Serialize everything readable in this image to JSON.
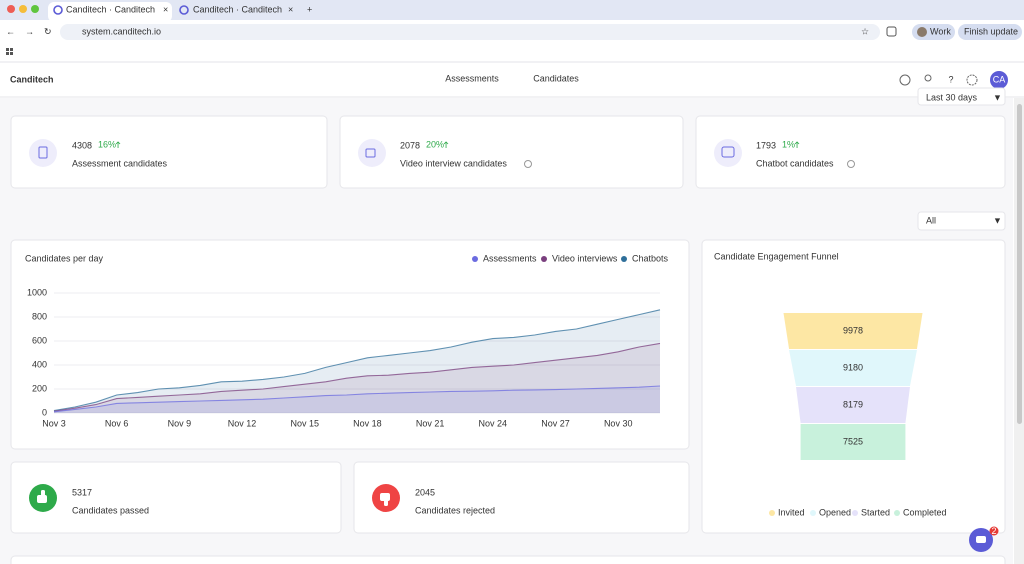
{
  "browser": {
    "tabs": [
      "Canditech · Canditech",
      "Canditech · Canditech"
    ],
    "url": "system.canditech.io",
    "profile": "Work",
    "update_button": "Finish update"
  },
  "header": {
    "logo": "Canditech",
    "nav": [
      "Assessments",
      "Candidates"
    ],
    "avatar": "CA"
  },
  "filters": {
    "period": "Last 30 days",
    "scope": "All"
  },
  "stats": [
    {
      "value": 4308,
      "change": "16%",
      "label": "Assessment candidates"
    },
    {
      "value": 2078,
      "change": "20%",
      "label": "Video interview candidates"
    },
    {
      "value": 1793,
      "change": "1%",
      "label": "Chatbot candidates"
    }
  ],
  "results": [
    {
      "value": 5317,
      "label": "Candidates passed"
    },
    {
      "value": 2045,
      "label": "Candidates rejected"
    }
  ],
  "chat_badge": 2,
  "chart_data": [
    {
      "type": "area",
      "title": "Candidates per day",
      "categories": [
        "Nov 3",
        null,
        null,
        "Nov 6",
        null,
        null,
        "Nov 9",
        null,
        null,
        "Nov 12",
        null,
        null,
        "Nov 15",
        null,
        null,
        "Nov 18",
        null,
        null,
        "Nov 21",
        null,
        null,
        "Nov 24",
        null,
        null,
        "Nov 27",
        null,
        null,
        "Nov 30",
        null,
        null
      ],
      "series": [
        {
          "name": "Assessments",
          "color": "#6b6be0",
          "values": [
            10,
            30,
            50,
            80,
            85,
            90,
            95,
            100,
            105,
            110,
            115,
            125,
            135,
            145,
            150,
            160,
            165,
            170,
            175,
            180,
            182,
            185,
            190,
            192,
            195,
            200,
            205,
            210,
            215,
            225
          ]
        },
        {
          "name": "Video interviews",
          "color": "#7a3f7e",
          "values": [
            15,
            40,
            70,
            120,
            130,
            140,
            150,
            160,
            180,
            190,
            200,
            220,
            240,
            260,
            290,
            310,
            315,
            330,
            340,
            360,
            380,
            390,
            400,
            420,
            440,
            460,
            480,
            510,
            550,
            580
          ]
        },
        {
          "name": "Chatbots",
          "color": "#2f6f9a",
          "values": [
            20,
            50,
            90,
            150,
            170,
            200,
            210,
            230,
            260,
            265,
            280,
            300,
            330,
            380,
            420,
            460,
            480,
            500,
            520,
            550,
            590,
            620,
            630,
            650,
            680,
            700,
            740,
            780,
            820,
            860
          ]
        }
      ],
      "ylim": [
        0,
        1000
      ],
      "yticks": [
        0,
        200,
        400,
        600,
        800,
        1000
      ],
      "grid": true,
      "legend": "top-right"
    },
    {
      "type": "funnel",
      "title": "Candidate Engagement Funnel",
      "categories": [
        "Invited",
        "Opened",
        "Started",
        "Completed"
      ],
      "values": [
        9978,
        9180,
        8179,
        7525
      ],
      "colors": [
        "#fde7a4",
        "#e0f7fb",
        "#e5e2fa",
        "#c8f1dc"
      ],
      "legend": "bottom"
    }
  ]
}
